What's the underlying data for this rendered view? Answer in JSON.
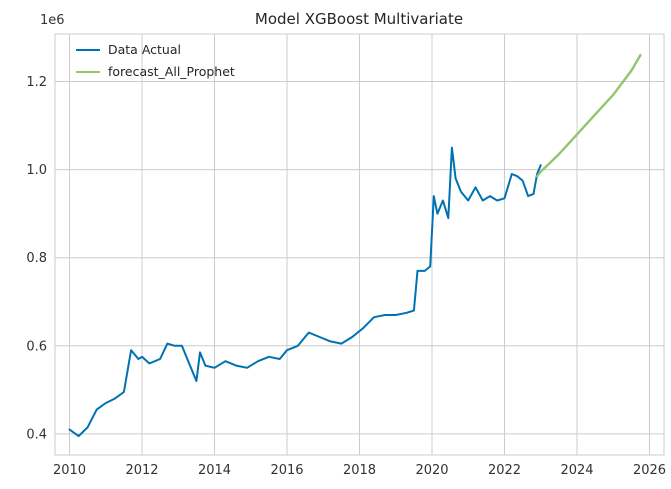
{
  "chart_data": {
    "type": "line",
    "title": "Model XGBoost Multivariate",
    "xlabel": "",
    "ylabel": "",
    "y_offset_label": "1e6",
    "xlim": [
      2009.6,
      2026.4
    ],
    "ylim": [
      0.352,
      1.308
    ],
    "x_ticks": [
      2010,
      2012,
      2014,
      2016,
      2018,
      2020,
      2022,
      2024,
      2026
    ],
    "x_tick_labels": [
      "2010",
      "2012",
      "2014",
      "2016",
      "2018",
      "2020",
      "2022",
      "2024",
      "2026"
    ],
    "y_ticks": [
      0.4,
      0.6,
      0.8,
      1.0,
      1.2
    ],
    "y_tick_labels": [
      "0.4",
      "0.6",
      "0.8",
      "1.0",
      "1.2"
    ],
    "grid": true,
    "legend_position": "top-left",
    "series": [
      {
        "name": "Data Actual",
        "color": "#0072B2",
        "x": [
          2010.0,
          2010.25,
          2010.5,
          2010.75,
          2011.0,
          2011.25,
          2011.5,
          2011.7,
          2011.9,
          2012.0,
          2012.2,
          2012.5,
          2012.7,
          2012.9,
          2013.1,
          2013.3,
          2013.5,
          2013.6,
          2013.75,
          2014.0,
          2014.3,
          2014.6,
          2014.9,
          2015.2,
          2015.5,
          2015.8,
          2016.0,
          2016.3,
          2016.6,
          2016.9,
          2017.2,
          2017.5,
          2017.8,
          2018.1,
          2018.4,
          2018.7,
          2019.0,
          2019.3,
          2019.5,
          2019.6,
          2019.8,
          2019.95,
          2020.05,
          2020.15,
          2020.3,
          2020.45,
          2020.55,
          2020.65,
          2020.8,
          2021.0,
          2021.2,
          2021.4,
          2021.6,
          2021.8,
          2022.0,
          2022.2,
          2022.35,
          2022.5,
          2022.65,
          2022.8,
          2022.9,
          2023.0
        ],
        "y": [
          0.41,
          0.395,
          0.415,
          0.455,
          0.47,
          0.48,
          0.495,
          0.59,
          0.57,
          0.575,
          0.56,
          0.57,
          0.605,
          0.6,
          0.6,
          0.56,
          0.52,
          0.585,
          0.555,
          0.55,
          0.565,
          0.555,
          0.55,
          0.565,
          0.575,
          0.57,
          0.59,
          0.6,
          0.63,
          0.62,
          0.61,
          0.605,
          0.62,
          0.64,
          0.665,
          0.67,
          0.67,
          0.675,
          0.68,
          0.77,
          0.77,
          0.78,
          0.94,
          0.9,
          0.93,
          0.89,
          1.05,
          0.98,
          0.95,
          0.93,
          0.96,
          0.93,
          0.94,
          0.93,
          0.935,
          0.99,
          0.985,
          0.975,
          0.94,
          0.945,
          0.99,
          1.01
        ]
      },
      {
        "name": "forecast_All_Prophet",
        "color": "#8FC66E",
        "x": [
          2022.9,
          2023.0,
          2023.5,
          2024.0,
          2024.5,
          2025.0,
          2025.5,
          2025.75
        ],
        "y": [
          0.985,
          0.995,
          1.035,
          1.08,
          1.125,
          1.17,
          1.225,
          1.26
        ]
      }
    ]
  }
}
